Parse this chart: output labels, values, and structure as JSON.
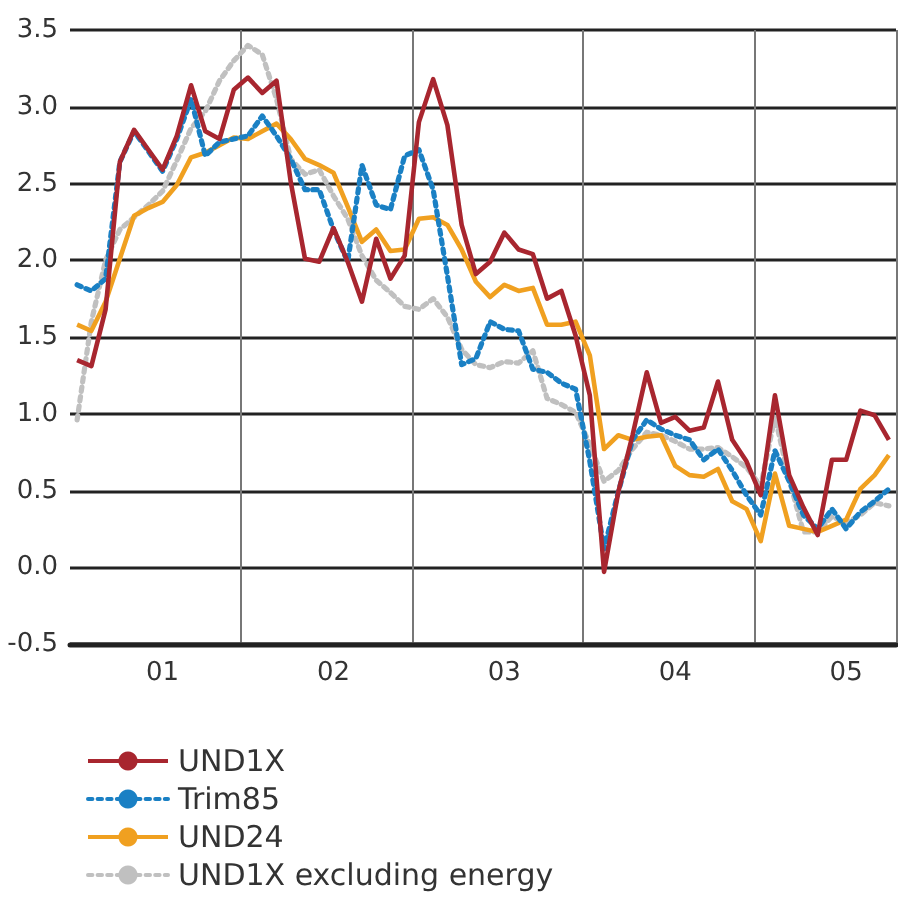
{
  "chart_data": {
    "type": "line",
    "ylim": [
      -0.5,
      3.5
    ],
    "categories": [
      null,
      null,
      null,
      null,
      null,
      null,
      "01",
      null,
      null,
      null,
      null,
      null,
      null,
      null,
      null,
      null,
      null,
      null,
      "02",
      null,
      null,
      null,
      null,
      null,
      null,
      null,
      null,
      null,
      null,
      null,
      "03",
      null,
      null,
      null,
      null,
      null,
      null,
      null,
      null,
      null,
      null,
      null,
      "04",
      null,
      null,
      null,
      null,
      null,
      null,
      null,
      null,
      null,
      null,
      null,
      "05",
      null,
      null,
      null
    ],
    "yticks": [
      {
        "value": -0.5,
        "label": "-0.5"
      },
      {
        "value": 0,
        "label": "0.0"
      },
      {
        "value": 0.5,
        "label": "0.5"
      },
      {
        "value": 1,
        "label": "1.0"
      },
      {
        "value": 1.5,
        "label": "1.5"
      },
      {
        "value": 2,
        "label": "2.0"
      },
      {
        "value": 2.5,
        "label": "2.5"
      },
      {
        "value": 3,
        "label": "3.0"
      },
      {
        "value": 3.5,
        "label": "3.5"
      }
    ],
    "grid": true,
    "legend": "bottom",
    "marker": "none",
    "series": [
      {
        "name": "UND1X",
        "color": "#a8262f",
        "line_style": "solid",
        "values": [
          1.35,
          1.31,
          1.68,
          2.64,
          2.85,
          2.72,
          2.59,
          2.81,
          3.14,
          2.84,
          2.79,
          3.11,
          3.19,
          3.09,
          3.17,
          2.51,
          2.01,
          1.99,
          2.21,
          1.99,
          1.73,
          2.14,
          1.88,
          2.03,
          2.9,
          3.18,
          2.88,
          2.23,
          1.91,
          1.99,
          2.18,
          2.07,
          2.04,
          1.75,
          1.8,
          1.51,
          1.12,
          -0.03,
          0.49,
          0.86,
          1.27,
          0.94,
          0.98,
          0.89,
          0.91,
          1.21,
          0.83,
          0.69,
          0.47,
          1.12,
          0.6,
          0.39,
          0.21,
          0.7,
          0.7,
          1.02,
          0.99,
          0.83
        ]
      },
      {
        "name": "Trim85",
        "color": "#1a80c4",
        "line_style": "dotted",
        "values": [
          1.84,
          1.8,
          1.88,
          2.64,
          2.84,
          2.71,
          2.58,
          2.79,
          3.05,
          2.68,
          2.77,
          2.79,
          2.81,
          2.94,
          2.81,
          2.66,
          2.46,
          2.46,
          2.2,
          1.99,
          2.62,
          2.36,
          2.33,
          2.68,
          2.72,
          2.46,
          1.9,
          1.32,
          1.36,
          1.6,
          1.55,
          1.54,
          1.29,
          1.27,
          1.2,
          1.16,
          0.69,
          0.12,
          0.49,
          0.83,
          0.96,
          0.9,
          0.86,
          0.83,
          0.7,
          0.77,
          0.63,
          0.47,
          0.34,
          0.76,
          0.56,
          0.34,
          0.25,
          0.38,
          0.25,
          0.36,
          0.43,
          0.51
        ]
      },
      {
        "name": "UND24",
        "color": "#f0a020",
        "line_style": "solid",
        "values": [
          1.58,
          1.54,
          1.73,
          2.01,
          2.29,
          2.34,
          2.38,
          2.49,
          2.67,
          2.7,
          2.75,
          2.8,
          2.79,
          2.84,
          2.89,
          2.79,
          2.66,
          2.62,
          2.57,
          2.35,
          2.12,
          2.2,
          2.06,
          2.07,
          2.27,
          2.28,
          2.23,
          2.07,
          1.86,
          1.76,
          1.84,
          1.8,
          1.82,
          1.58,
          1.58,
          1.6,
          1.38,
          0.77,
          0.86,
          0.83,
          0.85,
          0.86,
          0.66,
          0.6,
          0.59,
          0.64,
          0.43,
          0.38,
          0.17,
          0.61,
          0.27,
          0.25,
          0.23,
          0.27,
          0.31,
          0.51,
          0.6,
          0.73
        ]
      },
      {
        "name": "UND1X excluding energy",
        "color": "#c0c0c0",
        "line_style": "dotted",
        "values": [
          0.96,
          1.6,
          2.0,
          2.2,
          2.28,
          2.36,
          2.45,
          2.65,
          2.86,
          2.97,
          3.17,
          3.3,
          3.4,
          3.34,
          3.05,
          2.66,
          2.56,
          2.59,
          2.42,
          2.27,
          2.03,
          1.87,
          1.79,
          1.7,
          1.68,
          1.75,
          1.63,
          1.42,
          1.32,
          1.3,
          1.34,
          1.33,
          1.41,
          1.1,
          1.06,
          1.01,
          0.8,
          0.56,
          0.63,
          0.77,
          0.88,
          0.86,
          0.82,
          0.77,
          0.77,
          0.78,
          0.72,
          0.65,
          0.53,
          0.98,
          0.57,
          0.23,
          0.23,
          0.33,
          0.29,
          0.34,
          0.42,
          0.4
        ]
      }
    ]
  }
}
